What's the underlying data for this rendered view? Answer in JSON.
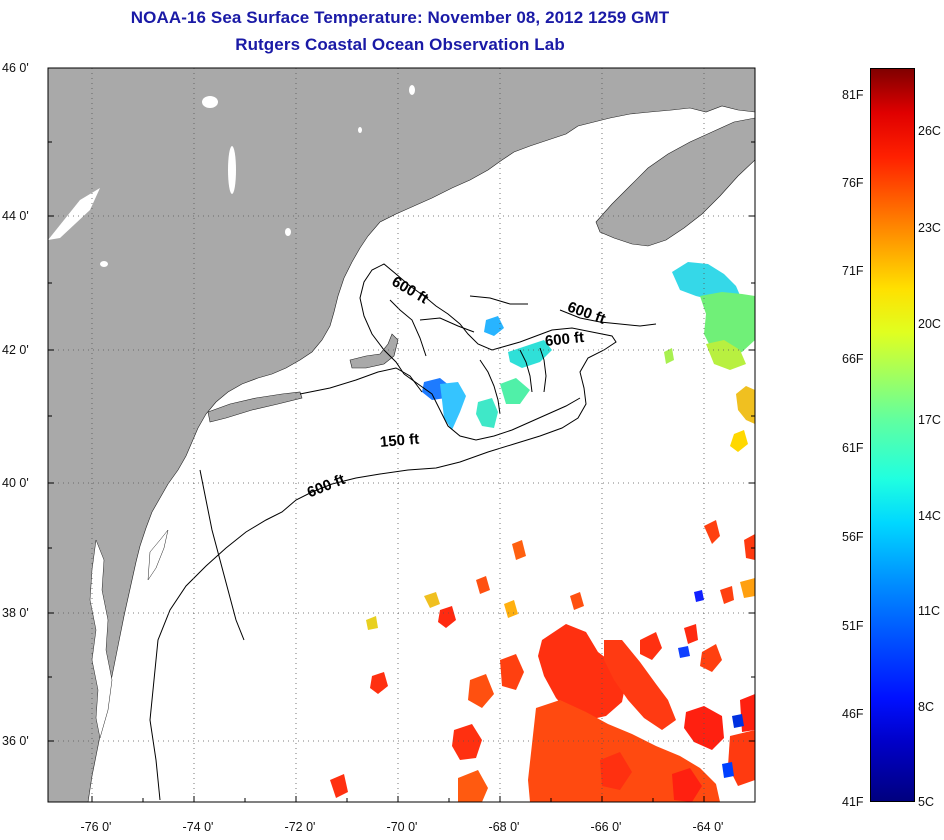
{
  "title": {
    "line1": "NOAA-16 Sea Surface Temperature:  November 08, 2012 1259 GMT",
    "line2": "Rutgers Coastal Ocean Observation Lab"
  },
  "map": {
    "lon_range": [
      -77,
      -63
    ],
    "lat_range": [
      35,
      46
    ],
    "lat_ticks": [
      "46 0'",
      "44 0'",
      "42 0'",
      "40 0'",
      "38 0'",
      "36 0'"
    ],
    "lon_ticks": [
      "-76 0'",
      "-74 0'",
      "-72 0'",
      "-70 0'",
      "-68 0'",
      "-66 0'",
      "-64 0'"
    ],
    "grid": "dotted",
    "land_color": "#a9a9a9",
    "water_color": "#ffffff",
    "contour_labels": [
      "600 ft",
      "600 ft",
      "600 ft",
      "150 ft",
      "600 ft"
    ]
  },
  "colorbar": {
    "fahrenheit_labels": [
      "81F",
      "76F",
      "71F",
      "66F",
      "61F",
      "56F",
      "51F",
      "46F",
      "41F"
    ],
    "celsius_labels": [
      "26C",
      "23C",
      "20C",
      "17C",
      "14C",
      "11C",
      "8C",
      "5C"
    ],
    "min_f": 41,
    "max_f": 83,
    "colormap": "jet"
  }
}
